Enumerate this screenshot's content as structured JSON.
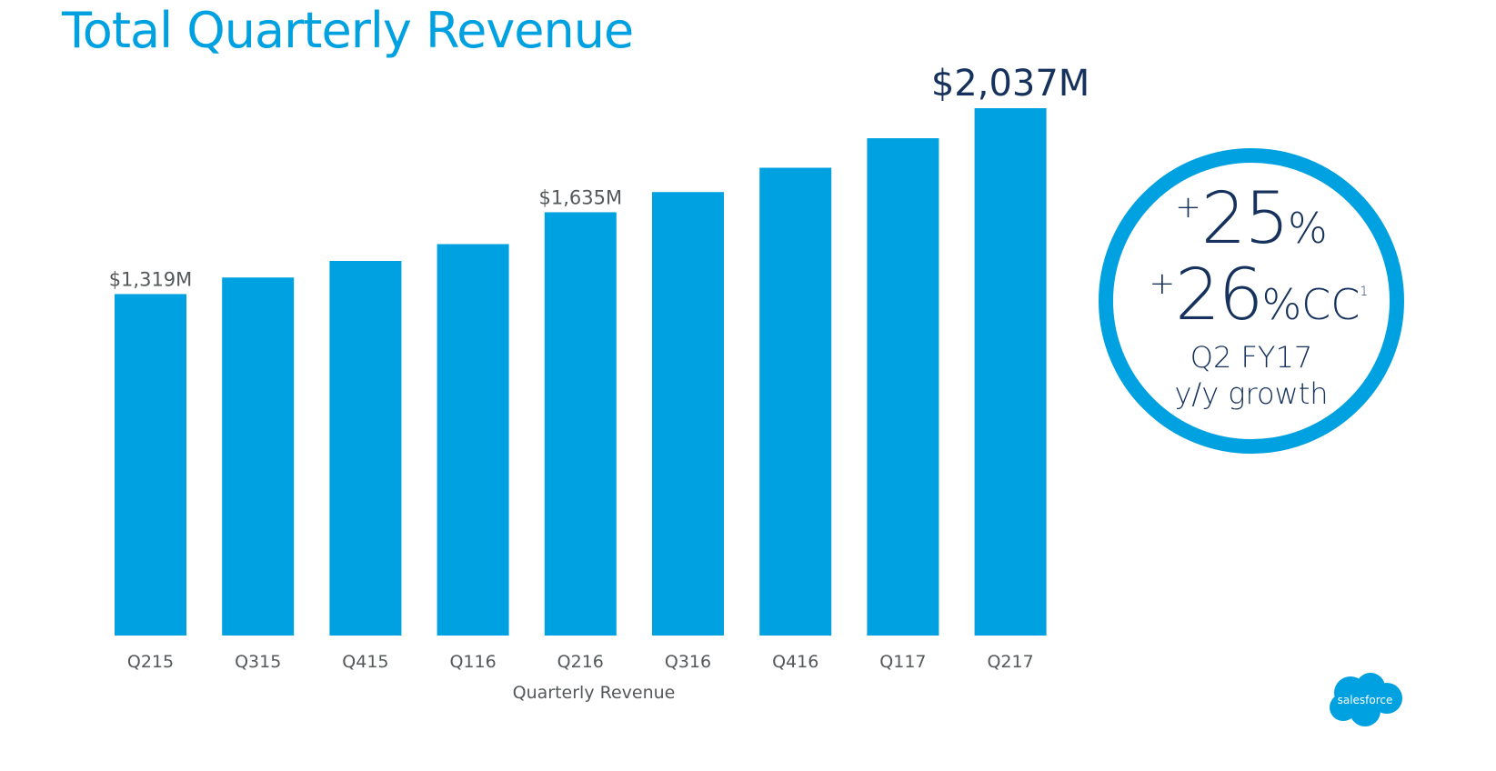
{
  "title": "Total Quarterly Revenue",
  "brand_color": "#00a1e0",
  "text_color_dark": "#16325c",
  "growth": {
    "plus": "+",
    "value1": "25",
    "pct": "%",
    "value2": "26",
    "cc": "%CC",
    "footnote": "1",
    "period": "Q2 FY17",
    "label": "y/y growth"
  },
  "logo": {
    "text": "salesforce"
  },
  "chart_data": {
    "type": "bar",
    "title": "Total Quarterly Revenue",
    "xlabel": "Quarterly Revenue",
    "ylabel": "",
    "unit": "$M",
    "categories": [
      "Q215",
      "Q315",
      "Q415",
      "Q116",
      "Q216",
      "Q316",
      "Q416",
      "Q117",
      "Q217"
    ],
    "values": [
      1319,
      1383,
      1447,
      1512,
      1635,
      1713,
      1807,
      1921,
      2037
    ],
    "data_labels": [
      {
        "index": 0,
        "text": "$1,319M"
      },
      {
        "index": 4,
        "text": "$1,635M"
      },
      {
        "index": 8,
        "text": "$2,037M"
      }
    ],
    "ylim": [
      0,
      2037
    ],
    "grid": false,
    "legend": "none",
    "bar_color": "#00a1e0"
  }
}
